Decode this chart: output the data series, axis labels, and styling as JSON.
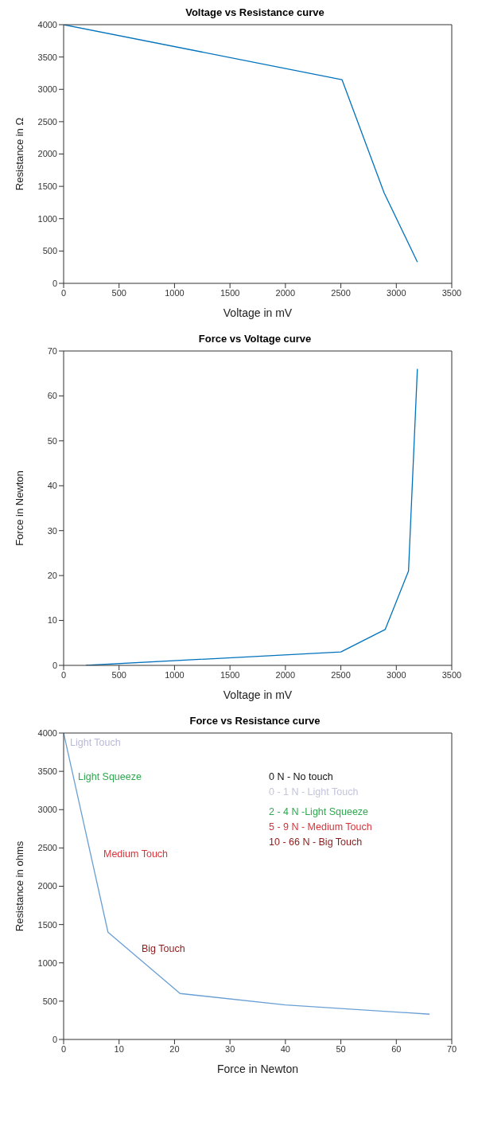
{
  "chart_data": [
    {
      "type": "line",
      "title": "Voltage vs Resistance curve",
      "xlabel": "Voltage in mV",
      "ylabel": "Resistance in Ω",
      "x": [
        0,
        2510,
        2890,
        3190
      ],
      "series": [
        {
          "color": "#0072bd",
          "values": [
            4000,
            3150,
            1400,
            330
          ]
        }
      ],
      "xlim": [
        0,
        3500
      ],
      "ylim": [
        0,
        4000
      ],
      "xticks": [
        0,
        500,
        1000,
        1500,
        2000,
        2500,
        3000,
        3500
      ],
      "yticks": [
        0,
        500,
        1000,
        1500,
        2000,
        2500,
        3000,
        3500,
        4000
      ],
      "grid": false,
      "legend": false,
      "marker": "none",
      "line_style": "solid"
    },
    {
      "type": "line",
      "title": "Force  vs Voltage curve",
      "xlabel": "Voltage in mV",
      "ylabel": "Force  in Newton",
      "x": [
        200,
        2500,
        2900,
        3110,
        3190
      ],
      "series": [
        {
          "color": "#0072bd",
          "values": [
            0,
            3,
            8,
            21,
            66
          ]
        }
      ],
      "xlim": [
        0,
        3500
      ],
      "ylim": [
        0,
        70
      ],
      "xticks": [
        0,
        500,
        1000,
        1500,
        2000,
        2500,
        3000,
        3500
      ],
      "yticks": [
        0,
        10,
        20,
        30,
        40,
        50,
        60,
        70
      ],
      "grid": false,
      "legend": false,
      "marker": "none",
      "line_style": "solid"
    },
    {
      "type": "line",
      "title": "Force vs Resistance curve",
      "xlabel": "Force  in Newton",
      "ylabel": "Resistance in ohms",
      "x": [
        0,
        8,
        21,
        40,
        66
      ],
      "series": [
        {
          "color": "#6a9fd4",
          "values": [
            4000,
            1400,
            600,
            450,
            330
          ]
        }
      ],
      "xlim": [
        0,
        70
      ],
      "ylim": [
        0,
        4000
      ],
      "xticks": [
        0,
        10,
        20,
        30,
        40,
        50,
        60,
        70
      ],
      "yticks": [
        0,
        500,
        1000,
        1500,
        2000,
        2500,
        3000,
        3500,
        4000
      ],
      "grid": false,
      "legend": false,
      "marker": "none",
      "line_style": "solid",
      "annotations": [
        "Light Touch",
        "Light Squeeze",
        "Medium Touch",
        "Big Touch",
        "0 N - No touch",
        "0 - 1 N - Light Touch",
        "2 - 4 N -Light Squeeze",
        "5 - 9 N - Medium Touch",
        "10 - 66 N - Big Touch"
      ]
    }
  ]
}
